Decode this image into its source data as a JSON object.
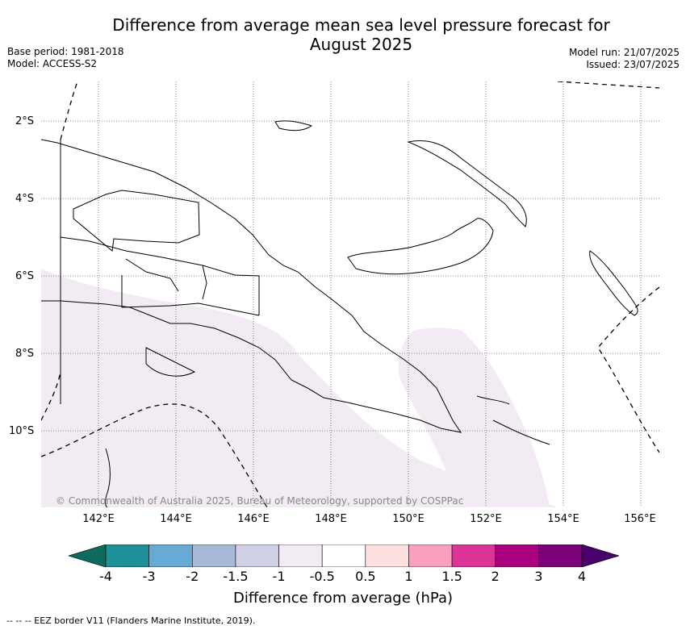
{
  "title_line1": "Difference from average mean sea level pressure forecast for",
  "title_line2": "August 2025",
  "meta": {
    "base_period": "Base period: 1981-2018",
    "model": "Model: ACCESS-S2",
    "model_run": "Model run: 21/07/2025",
    "issued": "Issued: 23/07/2025"
  },
  "map": {
    "lat_labels": [
      "2°S",
      "4°S",
      "6°S",
      "8°S",
      "10°S"
    ],
    "lon_labels": [
      "142°E",
      "144°E",
      "146°E",
      "148°E",
      "150°E",
      "152°E",
      "154°E",
      "156°E"
    ],
    "copyright": "© Commonwealth of Australia 2025, Bureau of Meteorology, supported by COSPPac",
    "anomaly_fill_color": "#f3ebf4"
  },
  "colorbar": {
    "label": "Difference from average (hPa)",
    "tick_labels": [
      "-4",
      "-3",
      "-2",
      "-1.5",
      "-1",
      "-0.5",
      "0.5",
      "1",
      "1.5",
      "2",
      "3",
      "4"
    ],
    "colors": [
      "#0b6b5d",
      "#1e9097",
      "#67aad6",
      "#a8b8d8",
      "#cfd0e6",
      "#f3ebf4",
      "#ffffff",
      "#fde0df",
      "#f7a1bd",
      "#dd3597",
      "#ac017e",
      "#7a0177",
      "#49006a"
    ]
  },
  "footer_eez": "-- -- -- EEZ border V11 (Flanders Marine Institute, 2019)."
}
